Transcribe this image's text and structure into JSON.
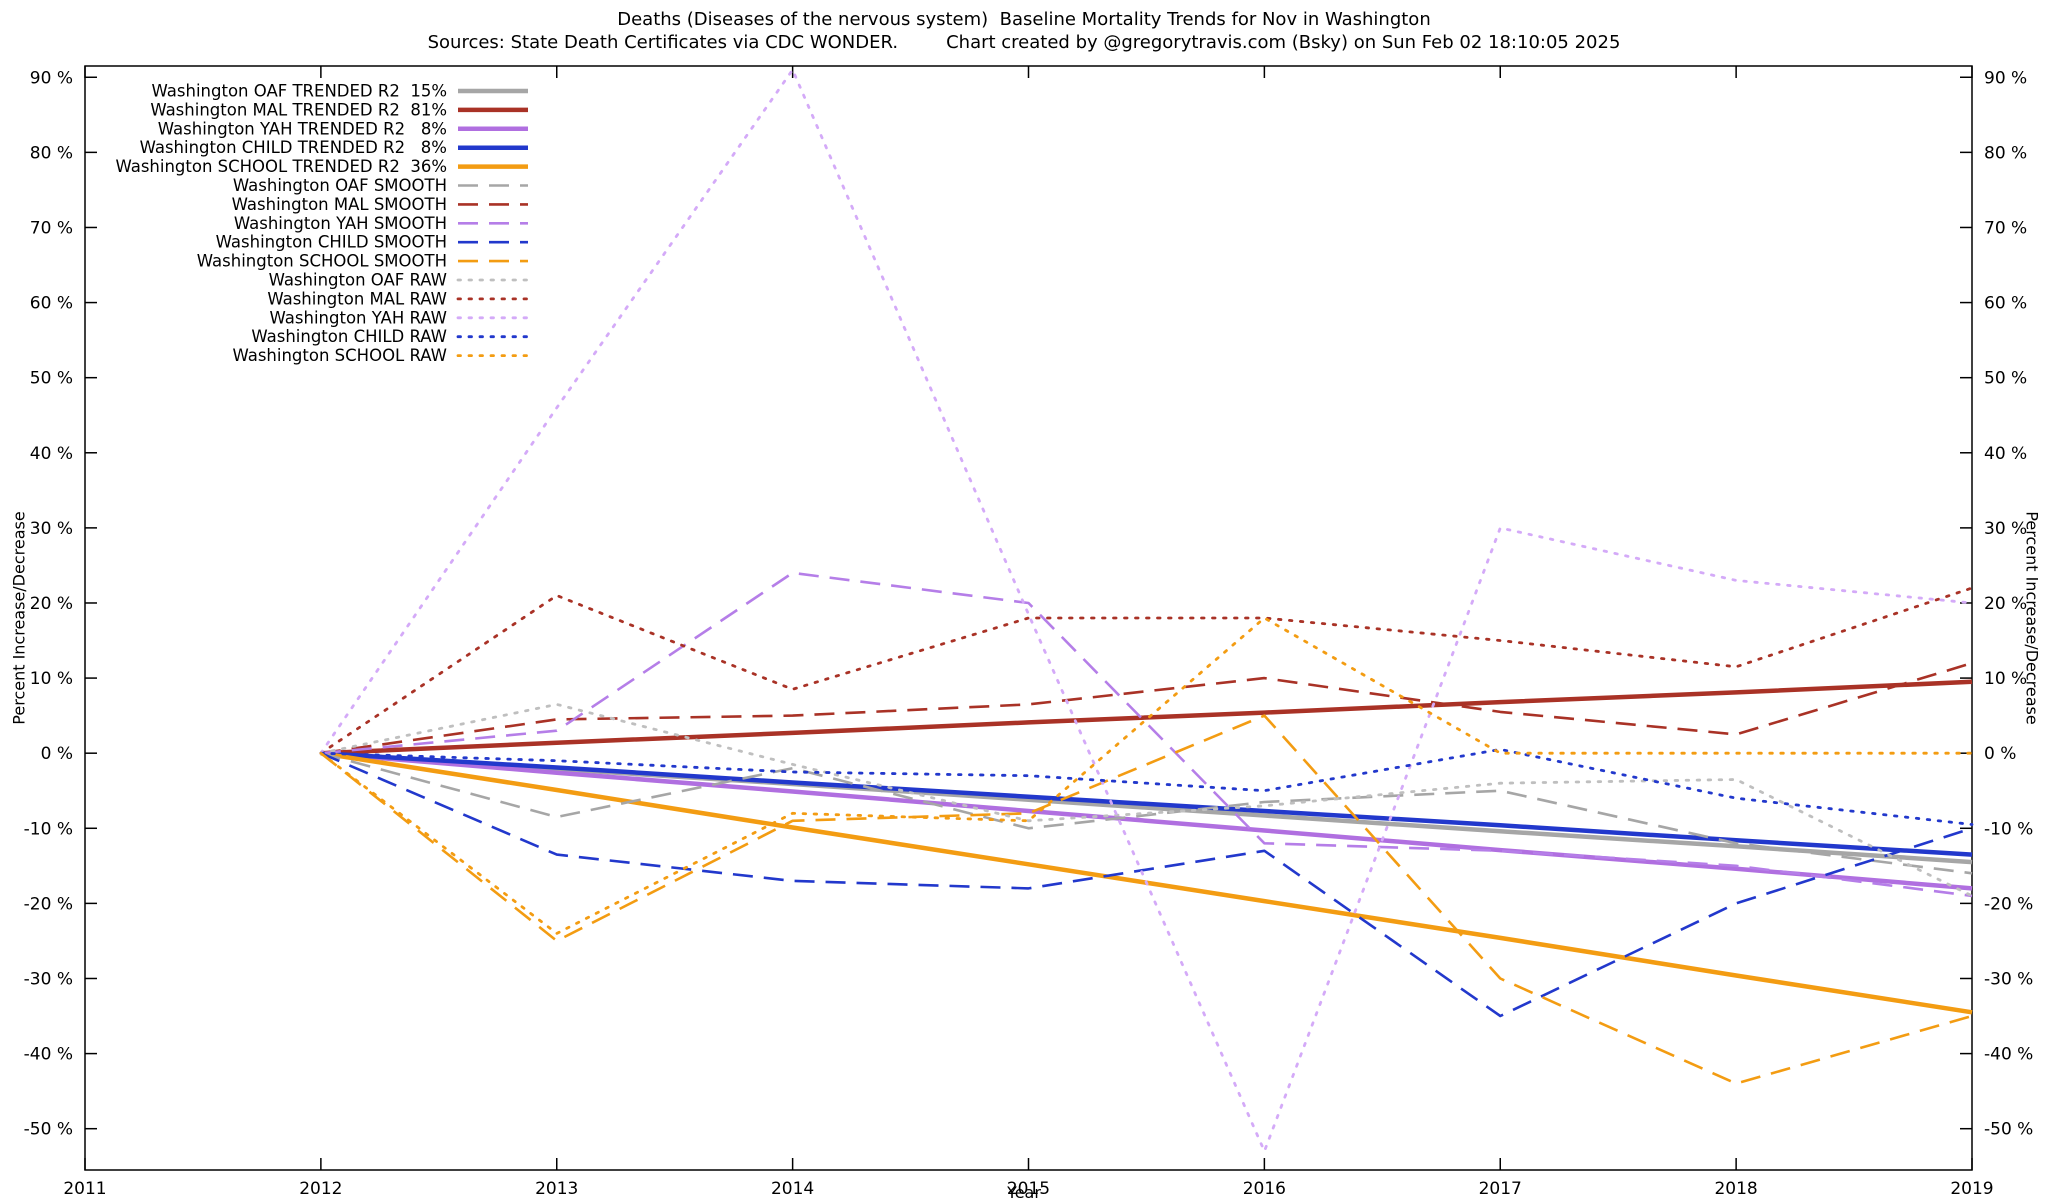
{
  "chart_data": {
    "type": "line",
    "title": "Deaths (Diseases of the nervous system)  Baseline Mortality Trends for Nov in Washington",
    "source_note": "Sources: State Death Certificates via CDC WONDER.",
    "credit_note": "Chart created by @gregorytravis.com (Bsky) on Sun Feb 02 18:10:05 2025",
    "xlabel": "Year",
    "ylabel": "Percent Increase/Decrease",
    "xlim": [
      2011,
      2019
    ],
    "ylim": [
      -55.5,
      91.5
    ],
    "xticks": [
      2011,
      2012,
      2013,
      2014,
      2015,
      2016,
      2017,
      2018,
      2019
    ],
    "yticks": [
      -50,
      -40,
      -30,
      -20,
      -10,
      0,
      10,
      20,
      30,
      40,
      50,
      60,
      70,
      80,
      90
    ],
    "ytick_suffix": " %",
    "grid": false,
    "legend_position": "top-left",
    "axis_color": "#000000",
    "background": "#ffffff",
    "x": [
      2012,
      2013,
      2014,
      2015,
      2016,
      2017,
      2018,
      2019
    ],
    "series": [
      {
        "name": "Washington OAF TRENDED R2  15%",
        "color": "#a6a6a6",
        "style": "solid",
        "width": 4.5,
        "values": [
          0,
          -2.1,
          -4.1,
          -6.2,
          -8.3,
          -10.4,
          -12.4,
          -14.5
        ]
      },
      {
        "name": "Washington MAL TRENDED R2  81%",
        "color": "#a93226",
        "style": "solid",
        "width": 4.5,
        "values": [
          0,
          1.4,
          2.7,
          4.1,
          5.4,
          6.8,
          8.1,
          9.5
        ]
      },
      {
        "name": "Washington YAH TRENDED R2   8%",
        "color": "#b06fe0",
        "style": "solid",
        "width": 4.5,
        "values": [
          0,
          -2.6,
          -5.1,
          -7.7,
          -10.3,
          -12.9,
          -15.4,
          -18
        ]
      },
      {
        "name": "Washington CHILD TRENDED R2   8%",
        "color": "#2238cc",
        "style": "solid",
        "width": 4.5,
        "values": [
          0,
          -1.9,
          -3.9,
          -5.8,
          -7.7,
          -9.6,
          -11.6,
          -13.5
        ]
      },
      {
        "name": "Washington SCHOOL TRENDED R2  36%",
        "color": "#f39c12",
        "style": "solid",
        "width": 4.5,
        "values": [
          0,
          -4.9,
          -9.9,
          -14.8,
          -19.7,
          -24.6,
          -29.6,
          -34.5
        ]
      },
      {
        "name": "Washington OAF SMOOTH",
        "color": "#a6a6a6",
        "style": "dashed",
        "width": 2.6,
        "values": [
          0,
          -8.5,
          -2,
          -10,
          -6.5,
          -5,
          -12,
          -16
        ]
      },
      {
        "name": "Washington MAL SMOOTH",
        "color": "#a93226",
        "style": "dashed",
        "width": 2.6,
        "values": [
          0,
          4.5,
          5,
          6.5,
          10,
          5.5,
          2.5,
          12
        ]
      },
      {
        "name": "Washington YAH SMOOTH",
        "color": "#b57ee8",
        "style": "dashed",
        "width": 2.6,
        "values": [
          0,
          3,
          24,
          20,
          -12,
          -13,
          -15,
          -19
        ]
      },
      {
        "name": "Washington CHILD SMOOTH",
        "color": "#2238cc",
        "style": "dashed",
        "width": 2.6,
        "values": [
          0,
          -13.5,
          -17,
          -18,
          -13,
          -35,
          -20,
          -10
        ]
      },
      {
        "name": "Washington SCHOOL SMOOTH",
        "color": "#f39c12",
        "style": "dashed",
        "width": 2.6,
        "values": [
          0,
          -25,
          -9,
          -8,
          5,
          -30,
          -44,
          -35
        ]
      },
      {
        "name": "Washington OAF RAW",
        "color": "#bfbfbf",
        "style": "dotted",
        "width": 2.8,
        "values": [
          0,
          6.5,
          -1.5,
          -9,
          -7,
          -4,
          -3.5,
          -19
        ]
      },
      {
        "name": "Washington MAL RAW",
        "color": "#a93226",
        "style": "dotted",
        "width": 2.8,
        "values": [
          0,
          21,
          8.5,
          18,
          18,
          15,
          11.5,
          22
        ]
      },
      {
        "name": "Washington YAH RAW",
        "color": "#d4aaf8",
        "style": "dotted",
        "width": 2.8,
        "values": [
          0,
          46,
          91,
          18.5,
          -53,
          30,
          23,
          20
        ]
      },
      {
        "name": "Washington CHILD RAW",
        "color": "#2238cc",
        "style": "dotted",
        "width": 2.8,
        "values": [
          0,
          -1,
          -2.5,
          -3,
          -5,
          0.5,
          -6,
          -9.5
        ]
      },
      {
        "name": "Washington SCHOOL RAW",
        "color": "#f39c12",
        "style": "dotted",
        "width": 2.8,
        "values": [
          0,
          -24,
          -8,
          -9,
          18,
          0,
          0,
          0
        ]
      }
    ]
  }
}
